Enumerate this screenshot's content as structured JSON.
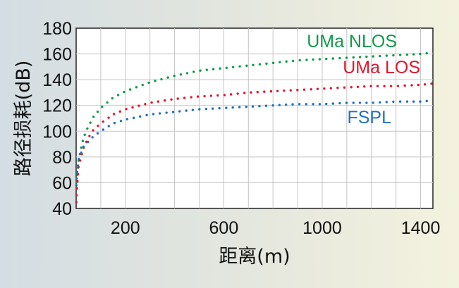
{
  "chart_data": {
    "type": "scatter",
    "title": "",
    "xlabel": "距离(m)",
    "ylabel": "路径损耗(dB)",
    "xlim": [
      0,
      1450
    ],
    "ylim": [
      40,
      180
    ],
    "xticks": [
      200,
      600,
      1000,
      1400
    ],
    "xticks_labeled": [
      "200",
      "600",
      "1000",
      "1400"
    ],
    "yticks": [
      40,
      60,
      80,
      100,
      120,
      140,
      160,
      180
    ],
    "yticks_labeled": [
      "40",
      "60",
      "80",
      "100",
      "120",
      "140",
      "160",
      "180"
    ],
    "x_minor_grid_step": 100,
    "grid": true,
    "legend": "labels placed next to curves on the right",
    "series": [
      {
        "name": "UMa NLOS",
        "color": "#0f9b4b",
        "x": [
          1,
          3,
          10,
          30,
          50,
          70,
          100,
          150,
          200,
          300,
          400,
          500,
          600,
          700,
          800,
          900,
          1000,
          1100,
          1200,
          1300,
          1400,
          1450
        ],
        "y": [
          50,
          60,
          78,
          95,
          104,
          111,
          118,
          126,
          131,
          138,
          143,
          147,
          149,
          151,
          153,
          155,
          156,
          157,
          158,
          159,
          160,
          161
        ]
      },
      {
        "name": "UMa LOS",
        "color": "#e0162d",
        "x": [
          1,
          3,
          10,
          30,
          50,
          70,
          100,
          150,
          200,
          300,
          400,
          500,
          600,
          700,
          800,
          900,
          1000,
          1100,
          1200,
          1300,
          1400,
          1450
        ],
        "y": [
          45,
          55,
          73,
          87,
          95,
          101,
          106,
          113,
          117,
          122,
          125,
          127,
          128,
          130,
          131,
          132,
          133,
          134,
          135,
          135,
          136,
          137
        ]
      },
      {
        "name": "FSPL",
        "color": "#1f6fc5",
        "x": [
          1,
          3,
          10,
          30,
          50,
          70,
          100,
          150,
          200,
          300,
          400,
          500,
          600,
          700,
          800,
          900,
          1000,
          1100,
          1200,
          1300,
          1400,
          1450
        ],
        "y": [
          58,
          66,
          78,
          88,
          92,
          96,
          100,
          106,
          109,
          113,
          115,
          117,
          118,
          119,
          120,
          121,
          121,
          122,
          122,
          123,
          123,
          124
        ]
      }
    ]
  }
}
